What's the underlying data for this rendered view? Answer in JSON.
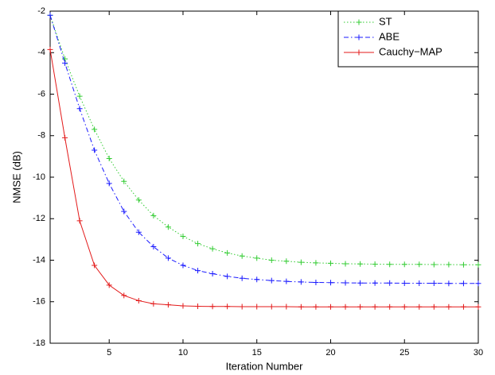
{
  "chart_data": {
    "type": "line",
    "x_label": "Iteration Number",
    "y_label": "NMSE (dB)",
    "x": [
      1,
      2,
      3,
      4,
      5,
      6,
      7,
      8,
      9,
      10,
      11,
      12,
      13,
      14,
      15,
      16,
      17,
      18,
      19,
      20,
      21,
      22,
      23,
      24,
      25,
      26,
      27,
      28,
      29,
      30
    ],
    "series": [
      {
        "name": "ST",
        "color": "#33cc33",
        "style": "dotted",
        "values": [
          -2.2,
          -4.3,
          -6.1,
          -7.7,
          -9.1,
          -10.2,
          -11.1,
          -11.85,
          -12.4,
          -12.85,
          -13.2,
          -13.45,
          -13.65,
          -13.8,
          -13.9,
          -14.0,
          -14.05,
          -14.1,
          -14.13,
          -14.15,
          -14.17,
          -14.18,
          -14.19,
          -14.2,
          -14.2,
          -14.2,
          -14.21,
          -14.21,
          -14.22,
          -14.22
        ]
      },
      {
        "name": "ABE",
        "color": "#1a1aff",
        "style": "dashdot",
        "values": [
          -2.2,
          -4.5,
          -6.7,
          -8.7,
          -10.3,
          -11.65,
          -12.65,
          -13.35,
          -13.9,
          -14.25,
          -14.5,
          -14.65,
          -14.78,
          -14.87,
          -14.93,
          -14.98,
          -15.02,
          -15.05,
          -15.07,
          -15.08,
          -15.09,
          -15.1,
          -15.1,
          -15.1,
          -15.11,
          -15.11,
          -15.11,
          -15.12,
          -15.12,
          -15.12
        ]
      },
      {
        "name": "Cauchy−MAP",
        "color": "#e31a1a",
        "style": "solid",
        "values": [
          -3.85,
          -8.1,
          -12.1,
          -14.25,
          -15.2,
          -15.7,
          -15.95,
          -16.1,
          -16.15,
          -16.2,
          -16.22,
          -16.23,
          -16.23,
          -16.24,
          -16.24,
          -16.24,
          -16.24,
          -16.25,
          -16.25,
          -16.25,
          -16.25,
          -16.25,
          -16.25,
          -16.25,
          -16.25,
          -16.25,
          -16.25,
          -16.25,
          -16.25,
          -16.25
        ]
      }
    ],
    "xlim": [
      1,
      30
    ],
    "xticks": [
      5,
      10,
      15,
      20,
      25,
      30
    ],
    "ylim": [
      -18,
      -2
    ],
    "yticks": [
      -18,
      -16,
      -14,
      -12,
      -10,
      -8,
      -6,
      -4,
      -2
    ],
    "legend": "upper right",
    "grid": false
  }
}
